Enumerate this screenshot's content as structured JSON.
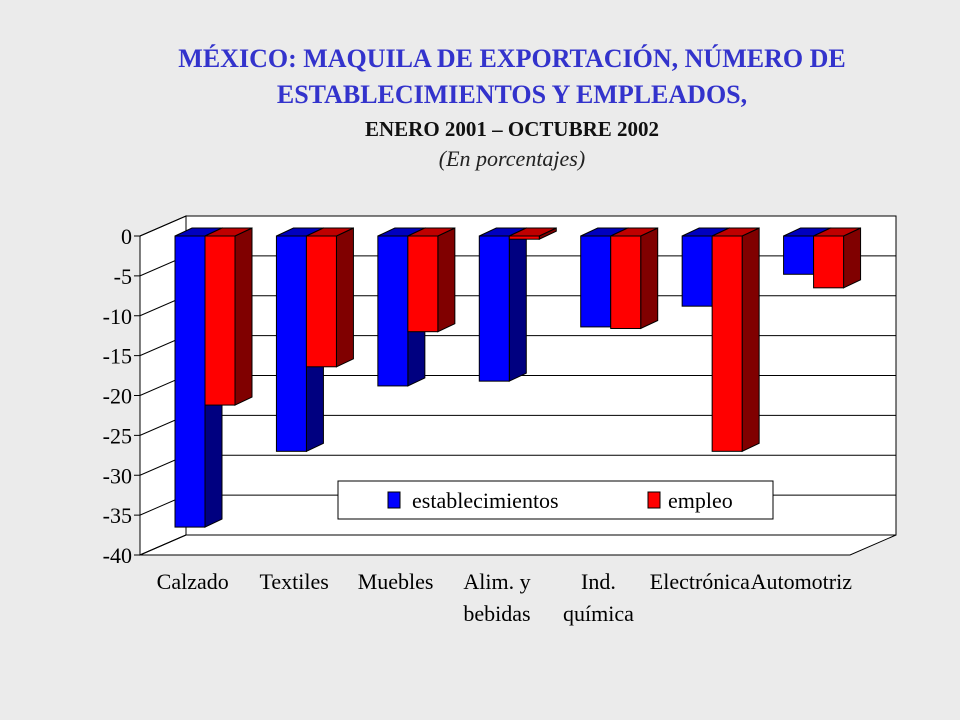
{
  "title_line1": "MÉXICO: MAQUILA DE EXPORTACIÓN, NÚMERO DE",
  "title_line2": "ESTABLECIMIENTOS Y EMPLEADOS,",
  "subtitle": "ENERO 2001 – OCTUBRE 2002",
  "units": "(En porcentajes)",
  "chart_data": {
    "type": "bar",
    "categories": [
      [
        "Calzado"
      ],
      [
        "Textiles"
      ],
      [
        "Muebles"
      ],
      [
        "Alim. y",
        "bebidas"
      ],
      [
        "Ind.",
        "química"
      ],
      [
        "Electrónica"
      ],
      [
        "Automotriz"
      ]
    ],
    "series": [
      {
        "name": "establecimientos",
        "color": "#0000ff",
        "values": [
          -36.5,
          -27,
          -18.8,
          -18.2,
          -11.4,
          -8.8,
          -4.8
        ]
      },
      {
        "name": "empleo",
        "color": "#ff0000",
        "values": [
          -21.2,
          -16.4,
          -12,
          -0.4,
          -11.6,
          -27,
          -6.5
        ]
      }
    ],
    "ylim": [
      -40,
      0
    ],
    "yticks": [
      "0",
      "-5",
      "-10",
      "-15",
      "-20",
      "-25",
      "-30",
      "-35",
      "-40"
    ],
    "grid": true,
    "legend_position": "bottom-right"
  }
}
